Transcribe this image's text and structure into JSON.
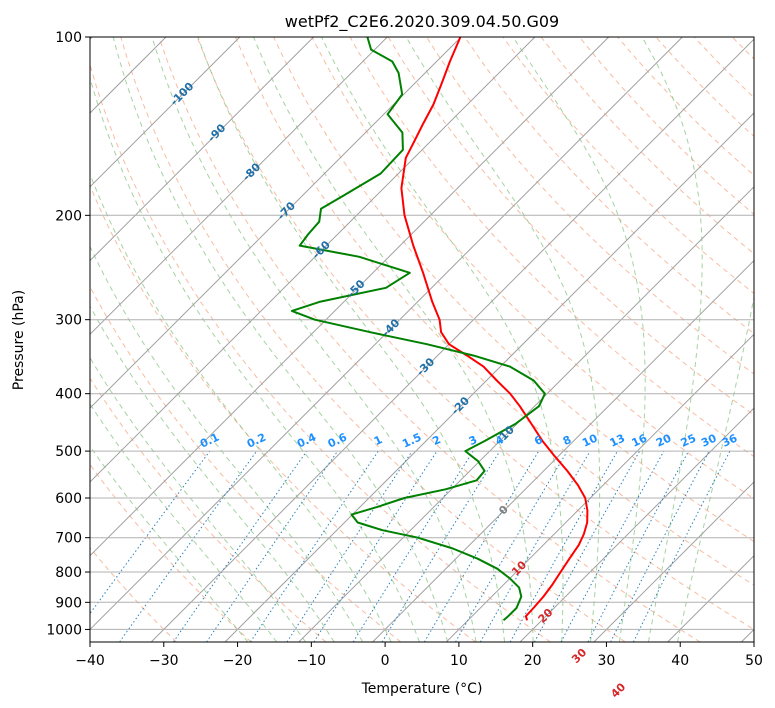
{
  "chart_data": {
    "type": "line",
    "title": "wetPf2_C2E6.2020.309.04.50.G09",
    "xlabel": "Temperature (°C)",
    "ylabel": "Pressure (hPa)",
    "xlim": [
      -40,
      50
    ],
    "ylim": [
      1050,
      100
    ],
    "y_scale": "log",
    "x_ticks": [
      "−40",
      "−30",
      "−20",
      "−10",
      "0",
      "10",
      "20",
      "30",
      "40",
      "50"
    ],
    "y_ticks": [
      {
        "value": 100,
        "label": "100"
      },
      {
        "value": 200,
        "label": "200"
      },
      {
        "value": 300,
        "label": "300"
      },
      {
        "value": 400,
        "label": "400"
      },
      {
        "value": 500,
        "label": "500"
      },
      {
        "value": 600,
        "label": "600"
      },
      {
        "value": 700,
        "label": "700"
      },
      {
        "value": 800,
        "label": "800"
      },
      {
        "value": 900,
        "label": "900"
      },
      {
        "value": 1000,
        "label": "1000"
      }
    ],
    "grid": true,
    "skew": "skew-T log-P",
    "colors": {
      "temperature": "#ff0000",
      "dewpoint": "#008000",
      "isotherm": "#a0a0a0",
      "dry_adiabat": "#f4a582",
      "moist_adiabat": "#7fbf7b",
      "mixing_ratio": "#2b83ba",
      "mixing_ratio_label": "#1e90ff",
      "isotherm_label_cold": "#1f6fa8",
      "isotherm_label_warm": "#d62728",
      "isotherm_label_zero": "#808080"
    },
    "series": [
      {
        "role": "temperature",
        "points": [
          {
            "p": 965,
            "t": 18.0
          },
          {
            "p": 950,
            "t": 17.3
          },
          {
            "p": 920,
            "t": 17.2
          },
          {
            "p": 880,
            "t": 17.0
          },
          {
            "p": 840,
            "t": 16.6
          },
          {
            "p": 800,
            "t": 16.0
          },
          {
            "p": 760,
            "t": 15.4
          },
          {
            "p": 720,
            "t": 14.8
          },
          {
            "p": 690,
            "t": 14.0
          },
          {
            "p": 660,
            "t": 12.9
          },
          {
            "p": 630,
            "t": 11.3
          },
          {
            "p": 600,
            "t": 9.3
          },
          {
            "p": 570,
            "t": 6.5
          },
          {
            "p": 540,
            "t": 3.2
          },
          {
            "p": 510,
            "t": -0.5
          },
          {
            "p": 480,
            "t": -4.3
          },
          {
            "p": 450,
            "t": -8.0
          },
          {
            "p": 420,
            "t": -12.0
          },
          {
            "p": 400,
            "t": -15.0
          },
          {
            "p": 380,
            "t": -18.6
          },
          {
            "p": 360,
            "t": -22.3
          },
          {
            "p": 345,
            "t": -26.0
          },
          {
            "p": 330,
            "t": -30.0
          },
          {
            "p": 315,
            "t": -32.7
          },
          {
            "p": 300,
            "t": -34.6
          },
          {
            "p": 280,
            "t": -38.0
          },
          {
            "p": 250,
            "t": -43.2
          },
          {
            "p": 225,
            "t": -48.2
          },
          {
            "p": 200,
            "t": -53.5
          },
          {
            "p": 180,
            "t": -57.6
          },
          {
            "p": 160,
            "t": -61.1
          },
          {
            "p": 150,
            "t": -62.2
          },
          {
            "p": 140,
            "t": -63.4
          },
          {
            "p": 130,
            "t": -64.6
          },
          {
            "p": 120,
            "t": -66.3
          },
          {
            "p": 110,
            "t": -68.2
          },
          {
            "p": 100,
            "t": -70.1
          }
        ]
      },
      {
        "role": "dewpoint",
        "points": [
          {
            "p": 965,
            "t": 14.8
          },
          {
            "p": 950,
            "t": 14.9
          },
          {
            "p": 920,
            "t": 14.9
          },
          {
            "p": 880,
            "t": 14.0
          },
          {
            "p": 850,
            "t": 12.5
          },
          {
            "p": 820,
            "t": 10.0
          },
          {
            "p": 790,
            "t": 7.0
          },
          {
            "p": 760,
            "t": 3.0
          },
          {
            "p": 730,
            "t": -1.8
          },
          {
            "p": 700,
            "t": -8.0
          },
          {
            "p": 680,
            "t": -13.8
          },
          {
            "p": 660,
            "t": -18.2
          },
          {
            "p": 640,
            "t": -20.1
          },
          {
            "p": 620,
            "t": -17.5
          },
          {
            "p": 600,
            "t": -15.2
          },
          {
            "p": 580,
            "t": -10.8
          },
          {
            "p": 560,
            "t": -7.8
          },
          {
            "p": 540,
            "t": -8.0
          },
          {
            "p": 520,
            "t": -10.2
          },
          {
            "p": 500,
            "t": -13.3
          },
          {
            "p": 480,
            "t": -12.0
          },
          {
            "p": 450,
            "t": -10.2
          },
          {
            "p": 420,
            "t": -9.4
          },
          {
            "p": 400,
            "t": -10.3
          },
          {
            "p": 380,
            "t": -13.6
          },
          {
            "p": 360,
            "t": -18.7
          },
          {
            "p": 345,
            "t": -25.1
          },
          {
            "p": 330,
            "t": -33.0
          },
          {
            "p": 315,
            "t": -42.3
          },
          {
            "p": 300,
            "t": -51.5
          },
          {
            "p": 290,
            "t": -55.8
          },
          {
            "p": 280,
            "t": -53.3
          },
          {
            "p": 265,
            "t": -46.2
          },
          {
            "p": 250,
            "t": -45.0
          },
          {
            "p": 235,
            "t": -54.0
          },
          {
            "p": 225,
            "t": -63.6
          },
          {
            "p": 215,
            "t": -64.0
          },
          {
            "p": 205,
            "t": -64.2
          },
          {
            "p": 195,
            "t": -65.7
          },
          {
            "p": 185,
            "t": -64.4
          },
          {
            "p": 170,
            "t": -62.4
          },
          {
            "p": 155,
            "t": -62.6
          },
          {
            "p": 145,
            "t": -65.0
          },
          {
            "p": 135,
            "t": -69.5
          },
          {
            "p": 125,
            "t": -70.2
          },
          {
            "p": 115,
            "t": -73.6
          },
          {
            "p": 110,
            "t": -76.0
          },
          {
            "p": 105,
            "t": -80.5
          },
          {
            "p": 100,
            "t": -82.7
          }
        ]
      }
    ],
    "isotherm_labels": [
      "-100",
      "-90",
      "-80",
      "-70",
      "-60",
      "-50",
      "-40",
      "-30",
      "-20",
      "-10",
      "0",
      "10",
      "20",
      "30",
      "40"
    ],
    "mixing_ratio_labels": [
      "0.1",
      "0.2",
      "0.4",
      "0.6",
      "1",
      "1.5",
      "2",
      "3",
      "4",
      "6",
      "8",
      "10",
      "13",
      "16",
      "20",
      "25",
      "30",
      "36"
    ]
  }
}
